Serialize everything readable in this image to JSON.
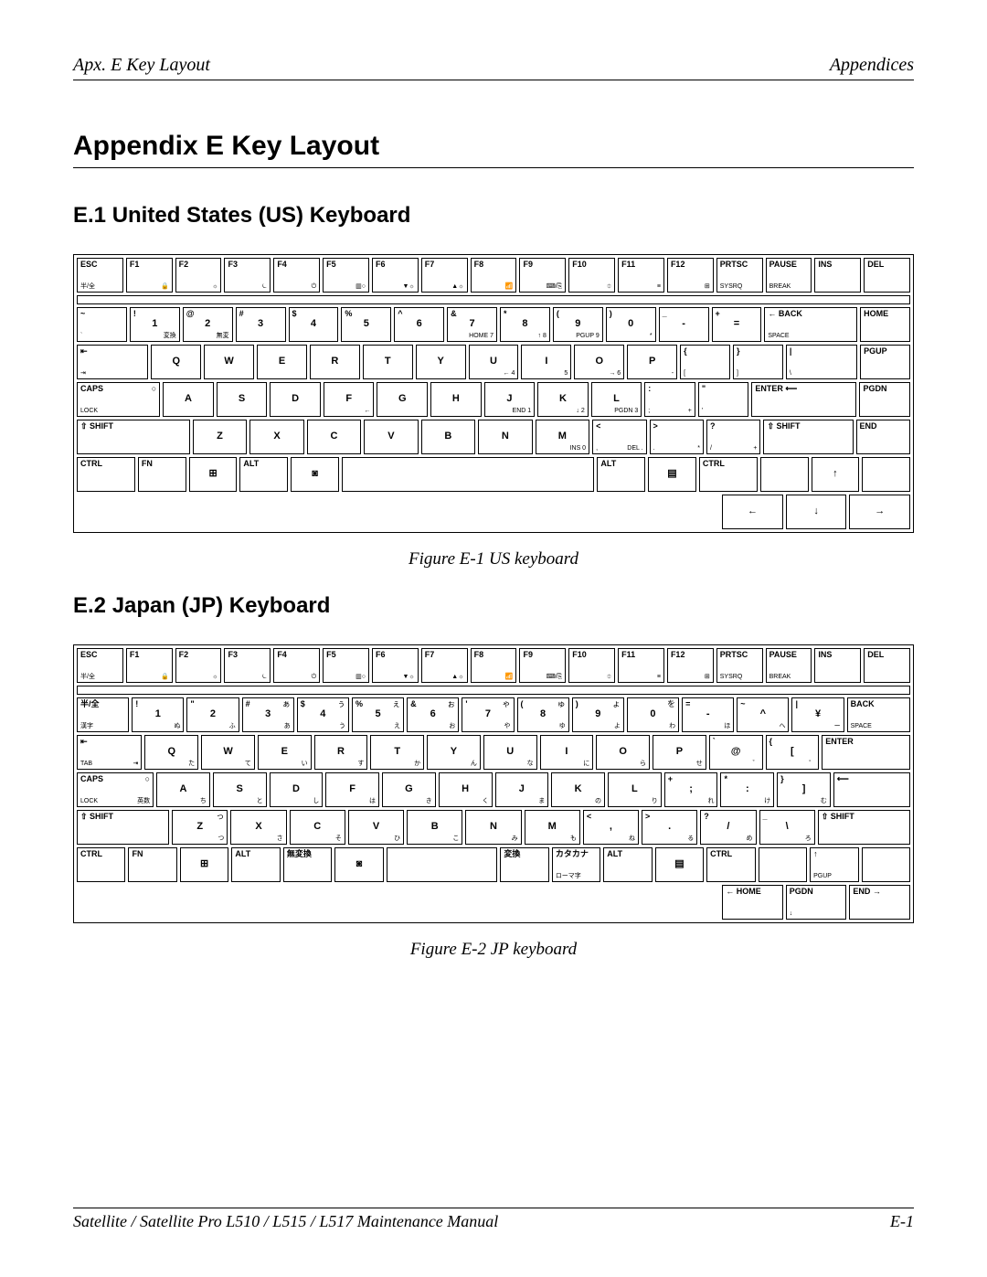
{
  "header": {
    "left": "Apx. E   Key Layout",
    "right": "Appendices"
  },
  "title": "Appendix E    Key Layout",
  "section1": {
    "heading": "E.1   United States (US) Keyboard",
    "caption": "Figure E-1 US keyboard"
  },
  "section2": {
    "heading": "E.2   Japan (JP) Keyboard",
    "caption": "Figure E-2 JP keyboard"
  },
  "footer": {
    "left": "Satellite / Satellite Pro L510 / L515 / L517 Maintenance Manual",
    "right": "E-1"
  },
  "colors": {
    "text": "#000000",
    "bg": "#ffffff",
    "border": "#000000"
  },
  "us_keyboard": {
    "row0": [
      {
        "tl": "ESC",
        "bl": "半/全",
        "w": "w1"
      },
      {
        "tl": "F1",
        "br": "🔒",
        "w": "w1"
      },
      {
        "tl": "F2",
        "br": "☼",
        "w": "w1"
      },
      {
        "tl": "F3",
        "br": "⏾",
        "w": "w1"
      },
      {
        "tl": "F4",
        "br": "⏻",
        "w": "w1"
      },
      {
        "tl": "F5",
        "br": "▥○",
        "w": "w1"
      },
      {
        "tl": "F6",
        "br": "▼☼",
        "w": "w1"
      },
      {
        "tl": "F7",
        "br": "▲☼",
        "w": "w1"
      },
      {
        "tl": "F8",
        "br": "📶",
        "w": "w1"
      },
      {
        "tl": "F9",
        "br": "⌨/⎘",
        "w": "w1"
      },
      {
        "tl": "F10",
        "br": "⯐",
        "w": "w1"
      },
      {
        "tl": "F11",
        "br": "≡",
        "w": "w1"
      },
      {
        "tl": "F12",
        "br": "⊞",
        "w": "w1"
      },
      {
        "tl": "PRTSC",
        "bl": "SYSRQ",
        "w": "w1"
      },
      {
        "tl": "PAUSE",
        "bl": "BREAK",
        "w": "w1"
      },
      {
        "tl": "INS",
        "w": "w1"
      },
      {
        "tl": "DEL",
        "w": "w1"
      }
    ],
    "row1": [
      {
        "tl": "~",
        "bl": "`",
        "w": "w1"
      },
      {
        "tl": "!",
        "ctr": "1",
        "br": "変換",
        "w": "w1"
      },
      {
        "tl": "@",
        "ctr": "2",
        "br": "無変",
        "w": "w1"
      },
      {
        "tl": "#",
        "ctr": "3",
        "w": "w1"
      },
      {
        "tl": "$",
        "ctr": "4",
        "w": "w1"
      },
      {
        "tl": "%",
        "ctr": "5",
        "w": "w1"
      },
      {
        "tl": "^",
        "ctr": "6",
        "w": "w1"
      },
      {
        "tl": "&",
        "ctr": "7",
        "br": "HOME 7",
        "w": "w1"
      },
      {
        "tl": "*",
        "ctr": "8",
        "br": "↑ 8",
        "w": "w1"
      },
      {
        "tl": "(",
        "ctr": "9",
        "br": "PGUP 9",
        "w": "w1"
      },
      {
        "tl": ")",
        "ctr": "0",
        "br": "*",
        "w": "w1"
      },
      {
        "tl": "_",
        "ctr": "-",
        "w": "w1"
      },
      {
        "tl": "+",
        "ctr": "=",
        "w": "w1"
      },
      {
        "tl": "← BACK",
        "bl": "SPACE",
        "w": "w2"
      },
      {
        "tl": "HOME",
        "w": "w1"
      }
    ],
    "row2": [
      {
        "tl": "⇤",
        "bl": "⇥",
        "w": "w15"
      },
      {
        "ctr": "Q",
        "w": "w1"
      },
      {
        "ctr": "W",
        "w": "w1"
      },
      {
        "ctr": "E",
        "w": "w1"
      },
      {
        "ctr": "R",
        "w": "w1"
      },
      {
        "ctr": "T",
        "w": "w1"
      },
      {
        "ctr": "Y",
        "w": "w1"
      },
      {
        "ctr": "U",
        "br": "← 4",
        "w": "w1"
      },
      {
        "ctr": "I",
        "br": "5",
        "w": "w1"
      },
      {
        "ctr": "O",
        "br": "→ 6",
        "w": "w1"
      },
      {
        "ctr": "P",
        "br": "-",
        "w": "w1"
      },
      {
        "tl": "{",
        "bl": "[",
        "w": "w1"
      },
      {
        "tl": "}",
        "bl": "]",
        "w": "w1"
      },
      {
        "tl": "|",
        "bl": "\\",
        "w": "w15"
      },
      {
        "tl": "PGUP",
        "w": "w1"
      }
    ],
    "row3": [
      {
        "tl": "CAPS",
        "bl": "LOCK",
        "tr": "○",
        "w": "w175"
      },
      {
        "ctr": "A",
        "w": "w1"
      },
      {
        "ctr": "S",
        "w": "w1"
      },
      {
        "ctr": "D",
        "w": "w1"
      },
      {
        "ctr": "F",
        "br": "←",
        "w": "w1"
      },
      {
        "ctr": "G",
        "w": "w1"
      },
      {
        "ctr": "H",
        "w": "w1"
      },
      {
        "ctr": "J",
        "br": "END 1",
        "w": "w1"
      },
      {
        "ctr": "K",
        "br": "↓ 2",
        "w": "w1"
      },
      {
        "ctr": "L",
        "br": "PGDN 3",
        "w": "w1"
      },
      {
        "tl": ":",
        "bl": ";",
        "br": "+",
        "w": "w1"
      },
      {
        "tl": "\"",
        "bl": "'",
        "w": "w1"
      },
      {
        "tl": "ENTER ⟵",
        "w": "w225"
      },
      {
        "tl": "PGDN",
        "w": "w1"
      }
    ],
    "row4": [
      {
        "tl": "⇧ SHIFT",
        "w": "w225"
      },
      {
        "ctr": "Z",
        "w": "w1"
      },
      {
        "ctr": "X",
        "w": "w1"
      },
      {
        "ctr": "C",
        "w": "w1"
      },
      {
        "ctr": "V",
        "w": "w1"
      },
      {
        "ctr": "B",
        "w": "w1"
      },
      {
        "ctr": "N",
        "w": "w1"
      },
      {
        "ctr": "M",
        "br": "INS 0",
        "w": "w1"
      },
      {
        "tl": "<",
        "bl": ",",
        "br": "DEL .",
        "w": "w1"
      },
      {
        "tl": ">",
        "bl": ".",
        "br": "*",
        "w": "w1"
      },
      {
        "tl": "?",
        "bl": "/",
        "br": "+",
        "w": "w1"
      },
      {
        "tl": "⇧ SHIFT",
        "w": "w175"
      },
      {
        "tl": "END",
        "w": "w1"
      }
    ],
    "row5": [
      {
        "tl": "CTRL",
        "w": "w125"
      },
      {
        "tl": "FN",
        "w": "w1"
      },
      {
        "ctr": "⊞",
        "w": "w1"
      },
      {
        "tl": "ALT",
        "w": "w1"
      },
      {
        "ctr": "◙",
        "w": "w1"
      },
      {
        "tl": "",
        "w": "w6"
      },
      {
        "tl": "ALT",
        "w": "w1"
      },
      {
        "ctr": "▤",
        "w": "w1"
      },
      {
        "tl": "CTRL",
        "w": "w125"
      },
      {
        "tl": "",
        "w": "w1"
      },
      {
        "ctr": "↑",
        "w": "w1"
      },
      {
        "tl": "",
        "w": "w1"
      }
    ],
    "row6": [
      {
        "ctr": "←",
        "w": "w1"
      },
      {
        "ctr": "↓",
        "w": "w1"
      },
      {
        "ctr": "→",
        "w": "w1"
      }
    ]
  },
  "jp_keyboard": {
    "row0": [
      {
        "tl": "ESC",
        "bl": "半/全",
        "w": "w1"
      },
      {
        "tl": "F1",
        "br": "🔒",
        "w": "w1"
      },
      {
        "tl": "F2",
        "br": "☼",
        "w": "w1"
      },
      {
        "tl": "F3",
        "br": "⏾",
        "w": "w1"
      },
      {
        "tl": "F4",
        "br": "⏻",
        "w": "w1"
      },
      {
        "tl": "F5",
        "br": "▥○",
        "w": "w1"
      },
      {
        "tl": "F6",
        "br": "▼☼",
        "w": "w1"
      },
      {
        "tl": "F7",
        "br": "▲☼",
        "w": "w1"
      },
      {
        "tl": "F8",
        "br": "📶",
        "w": "w1"
      },
      {
        "tl": "F9",
        "br": "⌨/⎘",
        "w": "w1"
      },
      {
        "tl": "F10",
        "br": "⯐",
        "w": "w1"
      },
      {
        "tl": "F11",
        "br": "≡",
        "w": "w1"
      },
      {
        "tl": "F12",
        "br": "⊞",
        "w": "w1"
      },
      {
        "tl": "PRTSC",
        "bl": "SYSRQ",
        "w": "w1"
      },
      {
        "tl": "PAUSE",
        "bl": "BREAK",
        "w": "w1"
      },
      {
        "tl": "INS",
        "w": "w1"
      },
      {
        "tl": "DEL",
        "w": "w1"
      }
    ],
    "row1": [
      {
        "tl": "半/全",
        "bl": "漢字",
        "w": "w1"
      },
      {
        "tl": "!",
        "ctr": "1",
        "br": "ぬ",
        "w": "w1"
      },
      {
        "tl": "\"",
        "ctr": "2",
        "br": "ふ",
        "w": "w1"
      },
      {
        "tl": "#",
        "tr": "ぁ",
        "ctr": "3",
        "br": "あ",
        "w": "w1"
      },
      {
        "tl": "$",
        "tr": "ぅ",
        "ctr": "4",
        "br": "う",
        "w": "w1"
      },
      {
        "tl": "%",
        "tr": "ぇ",
        "ctr": "5",
        "br": "え",
        "w": "w1"
      },
      {
        "tl": "&",
        "tr": "ぉ",
        "ctr": "6",
        "br": "お",
        "w": "w1"
      },
      {
        "tl": "'",
        "tr": "ゃ",
        "ctr": "7",
        "br": "や",
        "w": "w1"
      },
      {
        "tl": "(",
        "tr": "ゅ",
        "ctr": "8",
        "br": "ゆ",
        "w": "w1"
      },
      {
        "tl": ")",
        "tr": "ょ",
        "ctr": "9",
        "br": "よ",
        "w": "w1"
      },
      {
        "tl": "",
        "tr": "を",
        "ctr": "0",
        "br": "わ",
        "w": "w1"
      },
      {
        "tl": "=",
        "ctr": "-",
        "br": "ほ",
        "w": "w1"
      },
      {
        "tl": "~",
        "ctr": "^",
        "br": "へ",
        "w": "w1"
      },
      {
        "tl": "|",
        "ctr": "¥",
        "br": "ー",
        "w": "w1"
      },
      {
        "tl": "BACK",
        "bl": "SPACE",
        "w": "w125"
      }
    ],
    "row2": [
      {
        "tl": "⇤",
        "bl": "TAB",
        "br": "⇥",
        "w": "w125"
      },
      {
        "ctr": "Q",
        "br": "た",
        "w": "w1"
      },
      {
        "ctr": "W",
        "br": "て",
        "w": "w1"
      },
      {
        "ctr": "E",
        "br": "い",
        "w": "w1"
      },
      {
        "ctr": "R",
        "br": "す",
        "w": "w1"
      },
      {
        "ctr": "T",
        "br": "か",
        "w": "w1"
      },
      {
        "ctr": "Y",
        "br": "ん",
        "w": "w1"
      },
      {
        "ctr": "U",
        "br": "な",
        "w": "w1"
      },
      {
        "ctr": "I",
        "br": "に",
        "w": "w1"
      },
      {
        "ctr": "O",
        "br": "ら",
        "w": "w1"
      },
      {
        "ctr": "P",
        "br": "せ",
        "w": "w1"
      },
      {
        "tl": "`",
        "ctr": "@",
        "br": "゛",
        "w": "w1"
      },
      {
        "tl": "{",
        "ctr": "[",
        "br": "゜",
        "w": "w1"
      },
      {
        "tl": "ENTER",
        "w": "w175"
      }
    ],
    "row3": [
      {
        "tl": "CAPS",
        "bl": "LOCK",
        "br": "英数",
        "tr": "○",
        "w": "w15"
      },
      {
        "ctr": "A",
        "br": "ち",
        "w": "w1"
      },
      {
        "ctr": "S",
        "br": "と",
        "w": "w1"
      },
      {
        "ctr": "D",
        "br": "し",
        "w": "w1"
      },
      {
        "ctr": "F",
        "br": "は",
        "w": "w1"
      },
      {
        "ctr": "G",
        "br": "き",
        "w": "w1"
      },
      {
        "ctr": "H",
        "br": "く",
        "w": "w1"
      },
      {
        "ctr": "J",
        "br": "ま",
        "w": "w1"
      },
      {
        "ctr": "K",
        "br": "の",
        "w": "w1"
      },
      {
        "ctr": "L",
        "br": "り",
        "w": "w1"
      },
      {
        "tl": "+",
        "ctr": ";",
        "br": "れ",
        "w": "w1"
      },
      {
        "tl": "*",
        "ctr": ":",
        "br": "け",
        "w": "w1"
      },
      {
        "tl": "}",
        "ctr": "]",
        "br": "む",
        "w": "w1"
      },
      {
        "tl": "⟵",
        "w": "w15"
      }
    ],
    "row4": [
      {
        "tl": "⇧ SHIFT",
        "w": "w175"
      },
      {
        "ctr": "Z",
        "br": "つ",
        "tr": "っ",
        "w": "w1"
      },
      {
        "ctr": "X",
        "br": "さ",
        "w": "w1"
      },
      {
        "ctr": "C",
        "br": "そ",
        "w": "w1"
      },
      {
        "ctr": "V",
        "br": "ひ",
        "w": "w1"
      },
      {
        "ctr": "B",
        "br": "こ",
        "w": "w1"
      },
      {
        "ctr": "N",
        "br": "み",
        "w": "w1"
      },
      {
        "ctr": "M",
        "br": "も",
        "w": "w1"
      },
      {
        "tl": "<",
        "ctr": ",",
        "br": "ね",
        "w": "w1"
      },
      {
        "tl": ">",
        "ctr": ".",
        "br": "る",
        "w": "w1"
      },
      {
        "tl": "?",
        "ctr": "/",
        "br": "め",
        "w": "w1"
      },
      {
        "tl": "_",
        "ctr": "\\",
        "br": "ろ",
        "w": "w1"
      },
      {
        "tl": "⇧ SHIFT",
        "w": "w175"
      }
    ],
    "row5": [
      {
        "tl": "CTRL",
        "w": "w1"
      },
      {
        "tl": "FN",
        "w": "w1"
      },
      {
        "ctr": "⊞",
        "w": "w1"
      },
      {
        "tl": "ALT",
        "w": "w1"
      },
      {
        "tl": "無変換",
        "w": "w1"
      },
      {
        "ctr": "◙",
        "w": "w1"
      },
      {
        "tl": "",
        "w": "w25"
      },
      {
        "tl": "変換",
        "w": "w1"
      },
      {
        "tl": "カタカナ",
        "bl": "ローマ字",
        "w": "w1"
      },
      {
        "tl": "ALT",
        "w": "w1"
      },
      {
        "ctr": "▤",
        "w": "w1"
      },
      {
        "tl": "CTRL",
        "w": "w1"
      },
      {
        "tl": "",
        "w": "w1"
      },
      {
        "tl": "↑",
        "bl": "PGUP",
        "w": "w1"
      },
      {
        "tl": "",
        "w": "w1"
      }
    ],
    "row6": [
      {
        "tl": "← HOME",
        "w": "w1"
      },
      {
        "tl": "PGDN",
        "bl": "↓",
        "w": "w1"
      },
      {
        "tl": "END →",
        "w": "w1"
      }
    ]
  }
}
